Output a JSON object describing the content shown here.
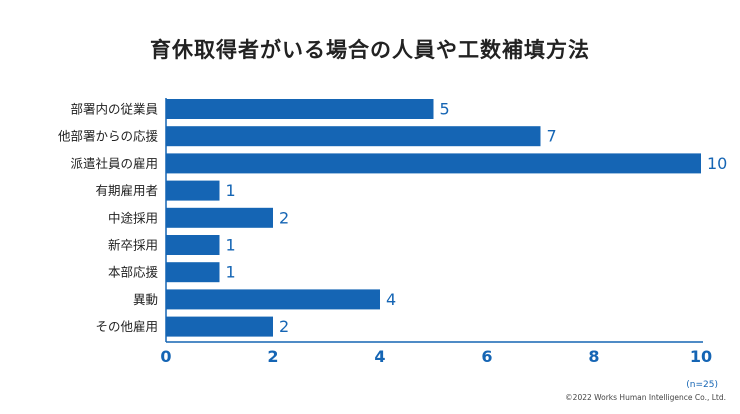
{
  "chart_data": {
    "type": "bar",
    "orientation": "horizontal",
    "title": "育休取得者がいる場合の人員や工数補填方法",
    "categories": [
      "部署内の従業員",
      "他部署からの応援",
      "派遣社員の雇用",
      "有期雇用者",
      "中途採用",
      "新卒採用",
      "本部応援",
      "異動",
      "その他雇用"
    ],
    "values": [
      5,
      7,
      10,
      1,
      2,
      1,
      1,
      4,
      2
    ],
    "xlim": [
      0,
      10
    ],
    "xticks": [
      "0",
      "2",
      "4",
      "6",
      "8",
      "10"
    ],
    "grid": false,
    "bar_color": "#1565b4"
  },
  "note": "(n=25)",
  "copyright": "©2022 Works Human Intelligence Co., Ltd."
}
